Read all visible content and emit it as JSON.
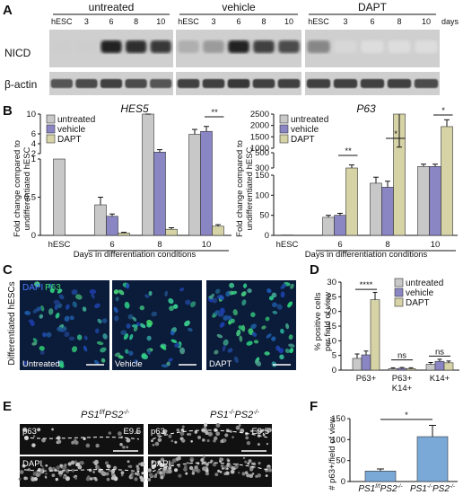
{
  "panels": {
    "A": "A",
    "B": "B",
    "C": "C",
    "D": "D",
    "E": "E",
    "F": "F"
  },
  "colors": {
    "untreated": "#c8c8c8",
    "vehicle": "#8a86c4",
    "dapt": "#d6d3a6",
    "f_bar": "#7aa9d8",
    "blot_bg": "#cfcfcf",
    "micro_bg": "#0b1b3a"
  },
  "panelA": {
    "groups": [
      "untreated",
      "vehicle",
      "DAPT"
    ],
    "lanes": [
      "hESC",
      "3",
      "6",
      "8",
      "10"
    ],
    "days_label": "days",
    "row_labels": [
      "NICD",
      "β-actin"
    ],
    "nicd_intensity": [
      [
        0.1,
        0.1,
        0.95,
        0.9,
        0.85
      ],
      [
        0.25,
        0.35,
        0.95,
        0.8,
        0.75
      ],
      [
        0.45,
        0.05,
        0.02,
        0.02,
        0.02
      ]
    ],
    "actin_intensity": [
      [
        0.7,
        0.75,
        0.8,
        0.75,
        0.7
      ],
      [
        0.8,
        0.8,
        0.85,
        0.8,
        0.8
      ],
      [
        0.8,
        0.8,
        0.8,
        0.8,
        0.75
      ]
    ]
  },
  "chart_data": [
    {
      "id": "B-HES5",
      "type": "bar",
      "title": "HES5",
      "ylabel": "Fold change compared to undifferentiated hESC",
      "xlabel": "Days in differentiation conditions",
      "categories": [
        "hESC",
        "6",
        "8",
        "10"
      ],
      "legend": [
        "untreated",
        "vehicle",
        "DAPT"
      ],
      "legend_position": "top-left",
      "broken_axis": true,
      "ytick_labels": [
        "0",
        "0.5",
        "1",
        "2",
        "4",
        "6",
        "10"
      ],
      "series": [
        {
          "name": "untreated",
          "values": [
            1.0,
            0.4,
            1.4,
            5.9
          ],
          "errors": [
            0,
            0.1,
            0.3,
            1.0
          ]
        },
        {
          "name": "vehicle",
          "values": [
            null,
            0.25,
            2.3,
            6.5
          ],
          "errors": [
            null,
            0.03,
            0.5,
            1.0
          ]
        },
        {
          "name": "DAPT",
          "values": [
            null,
            0.03,
            0.08,
            0.12
          ],
          "errors": [
            null,
            0.01,
            0.02,
            0.02
          ]
        }
      ],
      "significance": [
        {
          "category": "10",
          "label": "**"
        }
      ]
    },
    {
      "id": "B-P63",
      "type": "bar",
      "title": "P63",
      "ylabel": "Fold change compared to undifferentiated hESC",
      "xlabel": "Days in differentiation conditions",
      "categories": [
        "hESC",
        "6",
        "8",
        "10"
      ],
      "legend": [
        "untreated",
        "vehicle",
        "DAPT"
      ],
      "legend_position": "top-left",
      "broken_axis": true,
      "ytick_labels": [
        "0",
        "50",
        "100",
        "150",
        "300",
        "500",
        "1000",
        "1500",
        "2000",
        "2500"
      ],
      "series": [
        {
          "name": "untreated",
          "values": [
            1,
            45,
            130,
            320
          ],
          "errors": [
            0,
            5,
            15,
            30
          ]
        },
        {
          "name": "vehicle",
          "values": [
            null,
            50,
            120,
            320
          ],
          "errors": [
            null,
            5,
            15,
            30
          ]
        },
        {
          "name": "DAPT",
          "values": [
            null,
            300,
            900,
            1950
          ],
          "errors": [
            null,
            40,
            150,
            300
          ]
        }
      ],
      "significance": [
        {
          "category": "6",
          "label": "**"
        },
        {
          "category": "8",
          "label": "*"
        },
        {
          "category": "10",
          "label": "*"
        }
      ]
    },
    {
      "id": "D",
      "type": "bar",
      "ylabel": "% positive cells per field of view",
      "categories": [
        "P63+",
        "P63+ K14+",
        "K14+"
      ],
      "category_lines": [
        [
          "P63+"
        ],
        [
          "P63+",
          "K14+"
        ],
        [
          "K14+"
        ]
      ],
      "legend": [
        "untreated",
        "vehicle",
        "DAPT"
      ],
      "legend_position": "top-right",
      "ylim": [
        0,
        30
      ],
      "yticks": [
        "0",
        "5",
        "10",
        "15",
        "20",
        "25",
        "30"
      ],
      "series": [
        {
          "name": "untreated",
          "values": [
            4,
            0.5,
            2
          ],
          "errors": [
            1.5,
            0.3,
            0.6
          ]
        },
        {
          "name": "vehicle",
          "values": [
            5.2,
            0.6,
            3.0
          ],
          "errors": [
            1.3,
            0.3,
            0.7
          ]
        },
        {
          "name": "DAPT",
          "values": [
            24,
            0.5,
            2.5
          ],
          "errors": [
            2.5,
            0.3,
            0.6
          ]
        }
      ],
      "significance": [
        {
          "category": "P63+",
          "label": "****"
        },
        {
          "category": "P63+ K14+",
          "label": "ns"
        },
        {
          "category": "K14+",
          "label": "ns"
        }
      ]
    },
    {
      "id": "F",
      "type": "bar",
      "ylabel": "# p63+/field of view",
      "categories": [
        "PS1f/f PS2-/-",
        "PS1-/- PS2-/-"
      ],
      "ylim": [
        0,
        150
      ],
      "yticks": [
        "0",
        "50",
        "100",
        "150"
      ],
      "values": [
        25,
        107
      ],
      "errors": [
        5,
        27
      ],
      "significance": [
        {
          "label": "*"
        }
      ]
    }
  ],
  "panelC": {
    "side_label": "Differentiated hESCs",
    "channel_labels": [
      "DAPI",
      "P63"
    ],
    "images": [
      "Untreated",
      "Vehicle",
      "DAPT"
    ]
  },
  "panelE": {
    "genotype_left": "PS1f/f PS2-/-",
    "genotype_right": "PS1-/- PS2-/-",
    "stain_top": "p63",
    "stain_bottom": "DAPI",
    "stage": "E9.5"
  }
}
